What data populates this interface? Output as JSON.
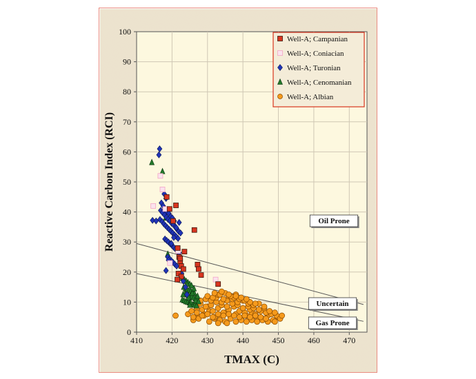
{
  "chart_data": {
    "type": "scatter",
    "xlabel": "TMAX (C)",
    "ylabel": "Reactive Carbon Index (RCI)",
    "xlim": [
      410,
      475
    ],
    "ylim": [
      0,
      100
    ],
    "xticks": [
      410,
      420,
      430,
      440,
      450,
      460,
      470
    ],
    "yticks": [
      0,
      10,
      20,
      30,
      40,
      50,
      60,
      70,
      80,
      90,
      100
    ],
    "grid": true,
    "legend_position": "top-right",
    "zone_labels": [
      "Oil Prone",
      "Uncertain",
      "Gas Prone"
    ],
    "boundary_lines": [
      {
        "x": [
          410,
          474
        ],
        "y": [
          29.5,
          9.2
        ]
      },
      {
        "x": [
          410,
          474
        ],
        "y": [
          19.5,
          3.6
        ]
      }
    ],
    "series": [
      {
        "name": "Well-A; Campanian",
        "marker": "square",
        "color": "#d8351f",
        "x": [
          418.5,
          419.3,
          420.3,
          421.1,
          421.6,
          422.0,
          422.3,
          422.6,
          423.2,
          421.8,
          422.6,
          421.5,
          426.3,
          427.2,
          427.5,
          428.2,
          423.5,
          433.0,
          422.3
        ],
        "y": [
          45.0,
          41.0,
          37.0,
          42.2,
          28.0,
          25.0,
          23.5,
          22.0,
          21.0,
          19.5,
          18.5,
          17.5,
          34.0,
          22.5,
          21.0,
          19.0,
          26.8,
          16.0,
          24.5
        ]
      },
      {
        "name": "Well-A; Coniacian",
        "marker": "square",
        "color": "#f3a6c5",
        "x": [
          416.7,
          414.7,
          417.3,
          418.1,
          419.4,
          432.3,
          421.7
        ],
        "y": [
          52.0,
          42.0,
          47.5,
          41.0,
          23.0,
          17.5,
          27.0
        ],
        "hollow": true
      },
      {
        "name": "Well-A; Turonian",
        "marker": "diamond",
        "color": "#1f34b8",
        "x": [
          416.5,
          416.3,
          417.8,
          418.3,
          417.0,
          417.5,
          418.0,
          418.6,
          419.1,
          419.6,
          420.1,
          420.6,
          416.8,
          417.3,
          417.9,
          418.4,
          418.9,
          419.4,
          419.9,
          420.4,
          420.9,
          421.4,
          421.9,
          422.4,
          416.6,
          417.2,
          417.7,
          418.2,
          418.7,
          419.2,
          419.7,
          420.2,
          420.7,
          421.2,
          421.7,
          418.0,
          418.5,
          419.0,
          419.5,
          420.0,
          420.5,
          421.0,
          421.5,
          422.0,
          418.8,
          419.3,
          419.8,
          420.3,
          420.8,
          421.3,
          414.5,
          415.5,
          418.3,
          419.0,
          419.8,
          420.5,
          421.2,
          422.0,
          422.7,
          423.2,
          423.8,
          424.2
        ],
        "y": [
          61.0,
          59.0,
          46.0,
          44.5,
          43.0,
          42.0,
          41.0,
          40.0,
          39.5,
          38.5,
          38.0,
          37.0,
          40.5,
          39.8,
          39.0,
          38.2,
          37.5,
          37.0,
          36.2,
          35.8,
          35.0,
          34.2,
          33.5,
          33.0,
          37.5,
          36.8,
          36.0,
          35.4,
          34.8,
          34.2,
          33.6,
          33.0,
          32.4,
          31.8,
          31.2,
          31.0,
          30.5,
          30.0,
          29.4,
          28.8,
          28.2,
          27.6,
          27.0,
          26.4,
          25.0,
          24.4,
          23.8,
          23.2,
          22.6,
          22.0,
          37.2,
          37.0,
          20.5,
          24.0,
          29.5,
          31.5,
          34.8,
          36.5,
          19.5,
          17.0,
          15.0,
          12.5
        ]
      },
      {
        "name": "Well-A; Cenomanian",
        "marker": "triangle",
        "color": "#237a2a",
        "x": [
          414.3,
          417.3,
          418.2,
          418.8,
          423.0,
          423.5,
          424.0,
          424.5,
          425.0,
          425.5,
          423.3,
          423.8,
          424.3,
          424.8,
          425.3,
          425.8,
          426.3,
          423.6,
          424.1,
          424.6,
          425.1,
          425.6,
          426.1,
          426.6,
          427.1,
          422.9,
          423.4,
          423.9,
          424.4,
          424.9,
          425.4,
          425.9,
          426.4,
          426.9,
          424.2,
          424.7,
          425.2,
          425.7,
          426.2,
          426.7,
          427.2,
          423.1,
          425.0,
          427.5
        ],
        "y": [
          56.5,
          53.5,
          38.0,
          26.0,
          18.0,
          17.5,
          17.0,
          16.5,
          16.0,
          15.5,
          15.0,
          14.5,
          14.2,
          14.0,
          13.8,
          13.5,
          13.0,
          12.8,
          12.5,
          12.2,
          12.0,
          11.8,
          11.5,
          11.2,
          11.0,
          10.8,
          10.5,
          10.2,
          10.0,
          9.8,
          9.5,
          9.2,
          9.0,
          8.8,
          16.0,
          11.5,
          10.0,
          13.0,
          14.5,
          10.5,
          12.0,
          12.5,
          9.0,
          10.2
        ]
      },
      {
        "name": "Well-A; Albian",
        "marker": "circle",
        "color": "#f59a1c",
        "x": [
          421.0,
          424.5,
          426.0,
          427.5,
          429.0,
          430.5,
          432.0,
          433.5,
          435.0,
          436.5,
          438.0,
          439.5,
          441.0,
          442.5,
          444.0,
          445.5,
          447.0,
          448.5,
          450.0,
          425.5,
          427.0,
          428.5,
          430.0,
          431.5,
          433.0,
          434.5,
          436.0,
          437.5,
          439.0,
          440.5,
          442.0,
          443.5,
          445.0,
          446.5,
          448.0,
          449.5,
          426.5,
          428.0,
          429.5,
          431.0,
          432.5,
          434.0,
          435.5,
          437.0,
          438.5,
          440.0,
          441.5,
          443.0,
          444.5,
          446.0,
          447.5,
          449.0,
          426.0,
          427.5,
          429.0,
          430.5,
          432.0,
          433.5,
          435.0,
          436.5,
          438.0,
          439.5,
          441.0,
          442.5,
          444.0,
          445.5,
          447.0,
          427.0,
          428.5,
          430.0,
          431.5,
          433.0,
          434.5,
          436.0,
          437.5,
          439.0,
          440.5,
          442.0,
          443.5,
          445.0,
          446.5,
          428.0,
          429.5,
          431.0,
          432.5,
          434.0,
          435.5,
          437.0,
          438.5,
          440.0,
          441.5,
          443.0,
          444.5,
          446.0,
          430.0,
          431.5,
          433.0,
          434.5,
          436.0,
          437.5,
          439.0,
          440.5,
          442.0,
          443.5,
          432.0,
          433.5,
          435.0,
          436.5,
          438.0,
          439.5,
          441.0,
          434.0,
          436.0,
          438.0,
          433.0,
          435.5,
          450.5,
          451.0,
          449.0
        ],
        "y": [
          5.5,
          6.0,
          4.0,
          5.0,
          6.0,
          7.0,
          4.5,
          5.5,
          6.5,
          5.0,
          6.0,
          4.5,
          5.5,
          6.5,
          5.0,
          4.5,
          5.5,
          4.0,
          5.0,
          7.0,
          8.0,
          7.5,
          8.5,
          7.0,
          8.0,
          6.5,
          7.5,
          8.5,
          7.0,
          6.5,
          7.5,
          6.0,
          7.0,
          6.5,
          6.0,
          5.5,
          9.0,
          9.5,
          8.5,
          9.0,
          10.0,
          9.0,
          8.5,
          9.5,
          9.0,
          8.0,
          8.5,
          8.0,
          7.5,
          8.0,
          7.0,
          6.5,
          5.0,
          4.5,
          5.5,
          3.5,
          5.0,
          4.0,
          3.5,
          4.5,
          3.5,
          4.0,
          3.5,
          4.0,
          3.5,
          4.0,
          3.5,
          6.5,
          5.5,
          6.0,
          5.0,
          6.0,
          5.5,
          6.0,
          5.5,
          5.0,
          5.5,
          5.0,
          5.5,
          5.0,
          4.5,
          10.5,
          11.0,
          10.5,
          11.5,
          10.0,
          10.5,
          11.0,
          10.0,
          10.5,
          9.5,
          9.0,
          9.5,
          8.5,
          12.0,
          11.5,
          12.5,
          11.0,
          12.0,
          11.5,
          11.0,
          10.5,
          10.0,
          9.5,
          13.0,
          12.5,
          13.0,
          12.0,
          12.5,
          11.5,
          11.0,
          13.5,
          12.5,
          12.0,
          3.0,
          3.0,
          4.5,
          5.5,
          3.5
        ]
      }
    ]
  }
}
